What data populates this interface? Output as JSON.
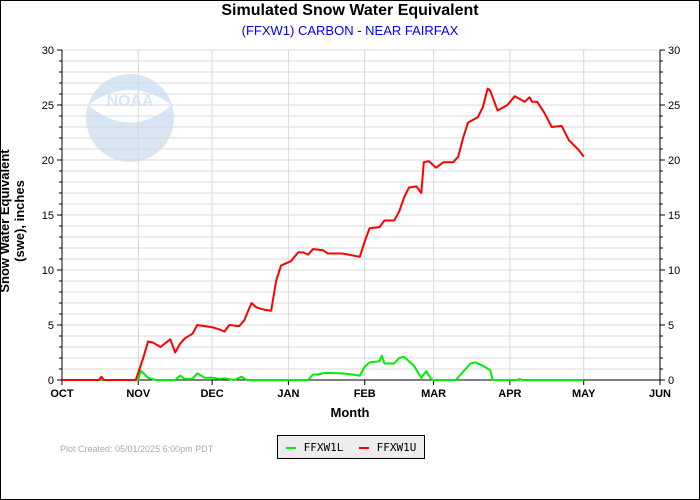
{
  "chart_data": {
    "type": "line",
    "title": "Simulated Snow Water Equivalent",
    "subtitle": "(FFXW1) CARBON - NEAR FAIRFAX",
    "xlabel": "Month",
    "ylabel": "Snow Water Equivalent (swe),  inches",
    "x_unit": "days since Oct 1",
    "xlim": [
      0,
      243
    ],
    "ylim": [
      0,
      30
    ],
    "x_ticks": [
      {
        "label": "OCT",
        "day": 0
      },
      {
        "label": "NOV",
        "day": 31
      },
      {
        "label": "DEC",
        "day": 61
      },
      {
        "label": "JAN",
        "day": 92
      },
      {
        "label": "FEB",
        "day": 123
      },
      {
        "label": "MAR",
        "day": 151
      },
      {
        "label": "APR",
        "day": 182
      },
      {
        "label": "MAY",
        "day": 212
      },
      {
        "label": "JUN",
        "day": 243
      }
    ],
    "y_ticks": [
      0,
      5,
      10,
      15,
      20,
      25,
      30
    ],
    "grid": true,
    "legend_placement": "bottom-center",
    "series": [
      {
        "name": "FFXW1L",
        "color": "#00ee00",
        "points": [
          [
            0,
            0
          ],
          [
            31,
            0
          ],
          [
            32,
            0.85
          ],
          [
            35,
            0.2
          ],
          [
            38,
            0
          ],
          [
            46,
            0
          ],
          [
            48,
            0.4
          ],
          [
            50,
            0.1
          ],
          [
            53,
            0.1
          ],
          [
            55,
            0.6
          ],
          [
            58,
            0.2
          ],
          [
            61,
            0.2
          ],
          [
            64,
            0.1
          ],
          [
            66,
            0.15
          ],
          [
            70,
            0
          ],
          [
            73,
            0.3
          ],
          [
            75,
            0
          ],
          [
            100,
            0
          ],
          [
            102,
            0.5
          ],
          [
            104,
            0.5
          ],
          [
            107,
            0.65
          ],
          [
            114,
            0.6
          ],
          [
            118,
            0.5
          ],
          [
            121,
            0.4
          ],
          [
            123,
            1.2
          ],
          [
            125,
            1.6
          ],
          [
            129,
            1.7
          ],
          [
            130,
            2.2
          ],
          [
            131,
            1.5
          ],
          [
            135,
            1.5
          ],
          [
            137,
            2.0
          ],
          [
            139,
            2.1
          ],
          [
            143,
            1.3
          ],
          [
            146,
            0.2
          ],
          [
            148,
            0.8
          ],
          [
            150,
            0.1
          ],
          [
            151,
            0
          ],
          [
            160,
            0
          ],
          [
            162,
            0.5
          ],
          [
            166,
            1.5
          ],
          [
            168,
            1.6
          ],
          [
            171,
            1.3
          ],
          [
            174,
            0.9
          ],
          [
            175,
            0
          ],
          [
            185,
            0
          ],
          [
            186,
            0.1
          ],
          [
            187,
            0
          ],
          [
            212,
            0
          ]
        ]
      },
      {
        "name": "FFXW1U",
        "color": "#ff0000",
        "points": [
          [
            0,
            0
          ],
          [
            15,
            0
          ],
          [
            16,
            0.3
          ],
          [
            17,
            0
          ],
          [
            30,
            0
          ],
          [
            33,
            2.0
          ],
          [
            35,
            3.5
          ],
          [
            37,
            3.4
          ],
          [
            40,
            3.0
          ],
          [
            44,
            3.7
          ],
          [
            46,
            2.5
          ],
          [
            48,
            3.3
          ],
          [
            50,
            3.8
          ],
          [
            53,
            4.2
          ],
          [
            55,
            5.0
          ],
          [
            61,
            4.8
          ],
          [
            64,
            4.6
          ],
          [
            66,
            4.4
          ],
          [
            68,
            5.0
          ],
          [
            72,
            4.9
          ],
          [
            74,
            5.4
          ],
          [
            77,
            7.0
          ],
          [
            79,
            6.6
          ],
          [
            82,
            6.4
          ],
          [
            85,
            6.3
          ],
          [
            87,
            9.0
          ],
          [
            89,
            10.4
          ],
          [
            93,
            10.8
          ],
          [
            96,
            11.6
          ],
          [
            98,
            11.6
          ],
          [
            100,
            11.4
          ],
          [
            102,
            11.9
          ],
          [
            106,
            11.8
          ],
          [
            108,
            11.5
          ],
          [
            114,
            11.5
          ],
          [
            121,
            11.2
          ],
          [
            123,
            12.6
          ],
          [
            125,
            13.8
          ],
          [
            129,
            13.9
          ],
          [
            131,
            14.5
          ],
          [
            135,
            14.5
          ],
          [
            137,
            15.3
          ],
          [
            139,
            16.6
          ],
          [
            141,
            17.5
          ],
          [
            144,
            17.6
          ],
          [
            146,
            17.0
          ],
          [
            147,
            19.8
          ],
          [
            149,
            19.9
          ],
          [
            152,
            19.3
          ],
          [
            155,
            19.8
          ],
          [
            159,
            19.8
          ],
          [
            161,
            20.3
          ],
          [
            163,
            22.0
          ],
          [
            165,
            23.4
          ],
          [
            169,
            23.9
          ],
          [
            171,
            24.8
          ],
          [
            173,
            26.5
          ],
          [
            174,
            26.3
          ],
          [
            177,
            24.5
          ],
          [
            181,
            25.0
          ],
          [
            184,
            25.8
          ],
          [
            188,
            25.3
          ],
          [
            190,
            25.7
          ],
          [
            191,
            25.3
          ],
          [
            193,
            25.3
          ],
          [
            196,
            24.3
          ],
          [
            199,
            23.0
          ],
          [
            203,
            23.1
          ],
          [
            206,
            21.8
          ],
          [
            210,
            20.9
          ],
          [
            212,
            20.3
          ]
        ]
      }
    ]
  },
  "footer": "Plot Created: 05/01/2025 6:00pm PDT",
  "watermark": "NOAA"
}
